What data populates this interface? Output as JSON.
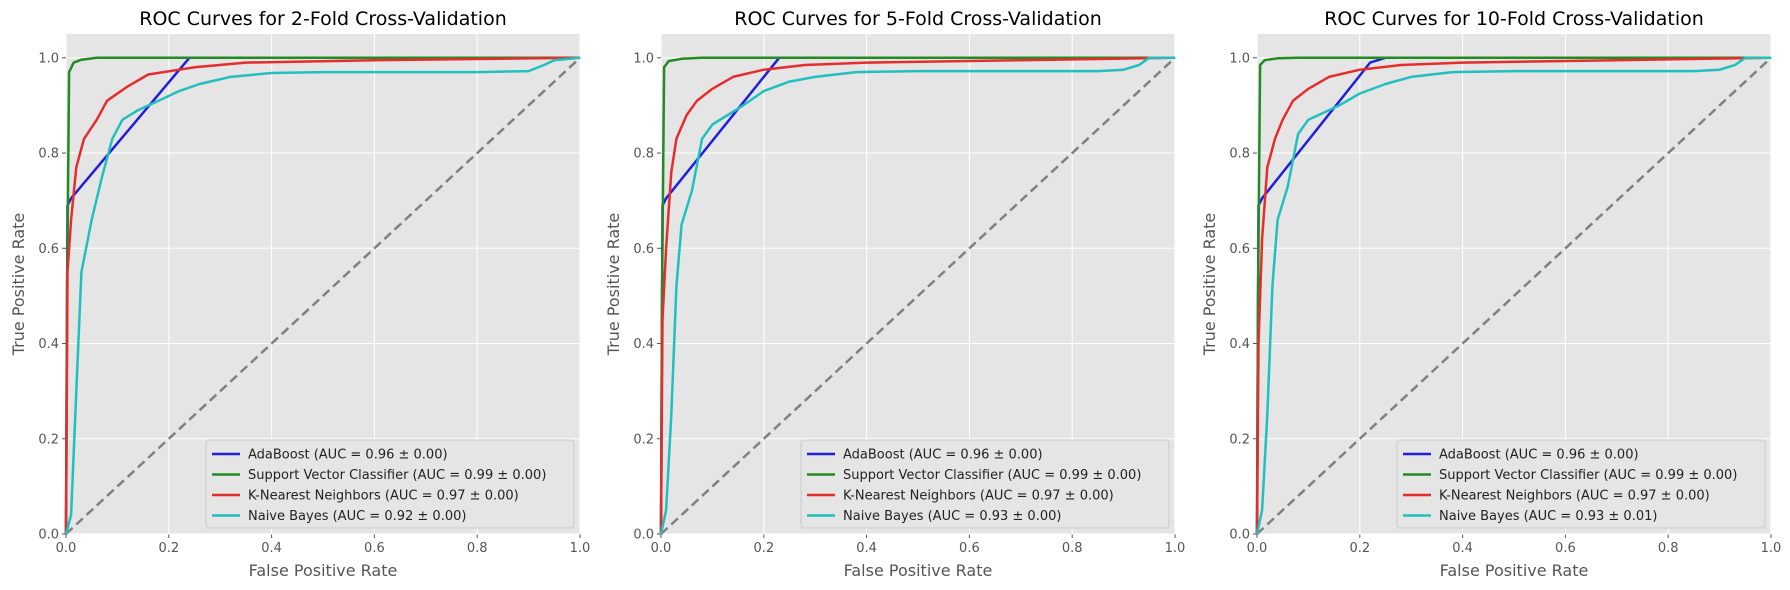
{
  "figure": {
    "colors": {
      "background": "#ffffff",
      "axes_face": "#e5e5e5",
      "grid": "#ffffff",
      "tick_text": "#555555",
      "title_text": "#000000",
      "diagonal": "#808080"
    }
  },
  "chart_data": [
    {
      "type": "line",
      "title": "ROC Curves for 2-Fold Cross-Validation",
      "xlabel": "False Positive Rate",
      "ylabel": "True Positive Rate",
      "xlim": [
        0,
        1
      ],
      "ylim": [
        0,
        1.05
      ],
      "xticks": [
        "0.0",
        "0.2",
        "0.4",
        "0.6",
        "0.8",
        "1.0"
      ],
      "yticks": [
        "0.0",
        "0.2",
        "0.4",
        "0.6",
        "0.8",
        "1.0"
      ],
      "grid": true,
      "legend_position": "lower right",
      "series": [
        {
          "name": "AdaBoost (AUC = 0.96 ± 0.00)",
          "color": "#1f1fdc",
          "points": [
            [
              0,
              0
            ],
            [
              0.003,
              0.69
            ],
            [
              0.01,
              0.705
            ],
            [
              0.24,
              1.0
            ],
            [
              1,
              1
            ]
          ]
        },
        {
          "name": "Support Vector Classifier (AUC = 0.99 ± 0.00)",
          "color": "#228b22",
          "points": [
            [
              0,
              0
            ],
            [
              0.002,
              0.5
            ],
            [
              0.006,
              0.97
            ],
            [
              0.015,
              0.99
            ],
            [
              0.03,
              0.996
            ],
            [
              0.06,
              1.0
            ],
            [
              1,
              1
            ]
          ]
        },
        {
          "name": "K-Nearest Neighbors (AUC = 0.97 ± 0.00)",
          "color": "#e52d2d",
          "points": [
            [
              0,
              0
            ],
            [
              0.003,
              0.55
            ],
            [
              0.01,
              0.66
            ],
            [
              0.02,
              0.77
            ],
            [
              0.035,
              0.83
            ],
            [
              0.06,
              0.87
            ],
            [
              0.08,
              0.91
            ],
            [
              0.12,
              0.94
            ],
            [
              0.16,
              0.965
            ],
            [
              0.25,
              0.98
            ],
            [
              0.35,
              0.99
            ],
            [
              0.6,
              0.995
            ],
            [
              1,
              1
            ]
          ]
        },
        {
          "name": "Naive Bayes (AUC = 0.92 ± 0.00)",
          "color": "#22bfbf",
          "points": [
            [
              0,
              0
            ],
            [
              0.01,
              0.04
            ],
            [
              0.02,
              0.3
            ],
            [
              0.03,
              0.55
            ],
            [
              0.05,
              0.66
            ],
            [
              0.07,
              0.75
            ],
            [
              0.09,
              0.83
            ],
            [
              0.11,
              0.87
            ],
            [
              0.14,
              0.89
            ],
            [
              0.18,
              0.91
            ],
            [
              0.22,
              0.93
            ],
            [
              0.26,
              0.945
            ],
            [
              0.32,
              0.96
            ],
            [
              0.4,
              0.968
            ],
            [
              0.5,
              0.97
            ],
            [
              0.6,
              0.97
            ],
            [
              0.7,
              0.97
            ],
            [
              0.8,
              0.97
            ],
            [
              0.9,
              0.972
            ],
            [
              0.93,
              0.985
            ],
            [
              0.95,
              0.995
            ],
            [
              0.97,
              0.997
            ],
            [
              1,
              1
            ]
          ]
        }
      ]
    },
    {
      "type": "line",
      "title": "ROC Curves for 5-Fold Cross-Validation",
      "xlabel": "False Positive Rate",
      "ylabel": "True Positive Rate",
      "xlim": [
        0,
        1
      ],
      "ylim": [
        0,
        1.05
      ],
      "xticks": [
        "0.0",
        "0.2",
        "0.4",
        "0.6",
        "0.8",
        "1.0"
      ],
      "yticks": [
        "0.0",
        "0.2",
        "0.4",
        "0.6",
        "0.8",
        "1.0"
      ],
      "grid": true,
      "legend_position": "lower right",
      "series": [
        {
          "name": "AdaBoost (AUC = 0.96 ± 0.00)",
          "color": "#1f1fdc",
          "points": [
            [
              0,
              0
            ],
            [
              0.003,
              0.69
            ],
            [
              0.01,
              0.705
            ],
            [
              0.23,
              1.0
            ],
            [
              1,
              1
            ]
          ]
        },
        {
          "name": "Support Vector Classifier (AUC = 0.99 ± 0.00)",
          "color": "#228b22",
          "points": [
            [
              0,
              0
            ],
            [
              0.002,
              0.5
            ],
            [
              0.006,
              0.98
            ],
            [
              0.015,
              0.993
            ],
            [
              0.04,
              0.998
            ],
            [
              0.08,
              1.0
            ],
            [
              1,
              1
            ]
          ]
        },
        {
          "name": "K-Nearest Neighbors (AUC = 0.97 ± 0.00)",
          "color": "#e52d2d",
          "points": [
            [
              0,
              0
            ],
            [
              0.003,
              0.45
            ],
            [
              0.01,
              0.6
            ],
            [
              0.02,
              0.76
            ],
            [
              0.03,
              0.83
            ],
            [
              0.05,
              0.88
            ],
            [
              0.07,
              0.91
            ],
            [
              0.1,
              0.935
            ],
            [
              0.14,
              0.96
            ],
            [
              0.2,
              0.975
            ],
            [
              0.28,
              0.985
            ],
            [
              0.4,
              0.99
            ],
            [
              0.7,
              0.995
            ],
            [
              1,
              1
            ]
          ]
        },
        {
          "name": "Naive Bayes (AUC = 0.93 ± 0.00)",
          "color": "#22bfbf",
          "points": [
            [
              0,
              0
            ],
            [
              0.01,
              0.05
            ],
            [
              0.02,
              0.25
            ],
            [
              0.03,
              0.52
            ],
            [
              0.04,
              0.65
            ],
            [
              0.06,
              0.72
            ],
            [
              0.08,
              0.83
            ],
            [
              0.1,
              0.86
            ],
            [
              0.13,
              0.88
            ],
            [
              0.16,
              0.9
            ],
            [
              0.2,
              0.93
            ],
            [
              0.25,
              0.95
            ],
            [
              0.3,
              0.96
            ],
            [
              0.38,
              0.97
            ],
            [
              0.5,
              0.972
            ],
            [
              0.7,
              0.972
            ],
            [
              0.85,
              0.972
            ],
            [
              0.9,
              0.975
            ],
            [
              0.93,
              0.985
            ],
            [
              0.95,
              1.0
            ],
            [
              1,
              1
            ]
          ]
        }
      ]
    },
    {
      "type": "line",
      "title": "ROC Curves for 10-Fold Cross-Validation",
      "xlabel": "False Positive Rate",
      "ylabel": "True Positive Rate",
      "xlim": [
        0,
        1
      ],
      "ylim": [
        0,
        1.05
      ],
      "xticks": [
        "0.0",
        "0.2",
        "0.4",
        "0.6",
        "0.8",
        "1.0"
      ],
      "yticks": [
        "0.0",
        "0.2",
        "0.4",
        "0.6",
        "0.8",
        "1.0"
      ],
      "grid": true,
      "legend_position": "lower right",
      "series": [
        {
          "name": "AdaBoost (AUC = 0.96 ± 0.00)",
          "color": "#1f1fdc",
          "points": [
            [
              0,
              0
            ],
            [
              0.003,
              0.69
            ],
            [
              0.01,
              0.705
            ],
            [
              0.22,
              0.99
            ],
            [
              0.25,
              1.0
            ],
            [
              1,
              1
            ]
          ]
        },
        {
          "name": "Support Vector Classifier (AUC = 0.99 ± 0.00)",
          "color": "#228b22",
          "points": [
            [
              0,
              0
            ],
            [
              0.002,
              0.5
            ],
            [
              0.006,
              0.985
            ],
            [
              0.015,
              0.995
            ],
            [
              0.04,
              0.999
            ],
            [
              0.08,
              1.0
            ],
            [
              1,
              1
            ]
          ]
        },
        {
          "name": "K-Nearest Neighbors (AUC = 0.97 ± 0.00)",
          "color": "#e52d2d",
          "points": [
            [
              0,
              0
            ],
            [
              0.003,
              0.4
            ],
            [
              0.01,
              0.62
            ],
            [
              0.02,
              0.77
            ],
            [
              0.035,
              0.83
            ],
            [
              0.05,
              0.87
            ],
            [
              0.07,
              0.91
            ],
            [
              0.1,
              0.935
            ],
            [
              0.14,
              0.96
            ],
            [
              0.2,
              0.975
            ],
            [
              0.28,
              0.985
            ],
            [
              0.4,
              0.99
            ],
            [
              0.7,
              0.995
            ],
            [
              1,
              1
            ]
          ]
        },
        {
          "name": "Naive Bayes (AUC = 0.93 ± 0.01)",
          "color": "#22bfbf",
          "points": [
            [
              0,
              0
            ],
            [
              0.01,
              0.05
            ],
            [
              0.02,
              0.25
            ],
            [
              0.03,
              0.52
            ],
            [
              0.04,
              0.66
            ],
            [
              0.06,
              0.73
            ],
            [
              0.08,
              0.84
            ],
            [
              0.1,
              0.87
            ],
            [
              0.13,
              0.885
            ],
            [
              0.16,
              0.9
            ],
            [
              0.2,
              0.925
            ],
            [
              0.25,
              0.945
            ],
            [
              0.3,
              0.96
            ],
            [
              0.38,
              0.97
            ],
            [
              0.5,
              0.972
            ],
            [
              0.7,
              0.972
            ],
            [
              0.85,
              0.972
            ],
            [
              0.9,
              0.975
            ],
            [
              0.93,
              0.985
            ],
            [
              0.95,
              1.0
            ],
            [
              1,
              1
            ]
          ]
        }
      ]
    }
  ]
}
